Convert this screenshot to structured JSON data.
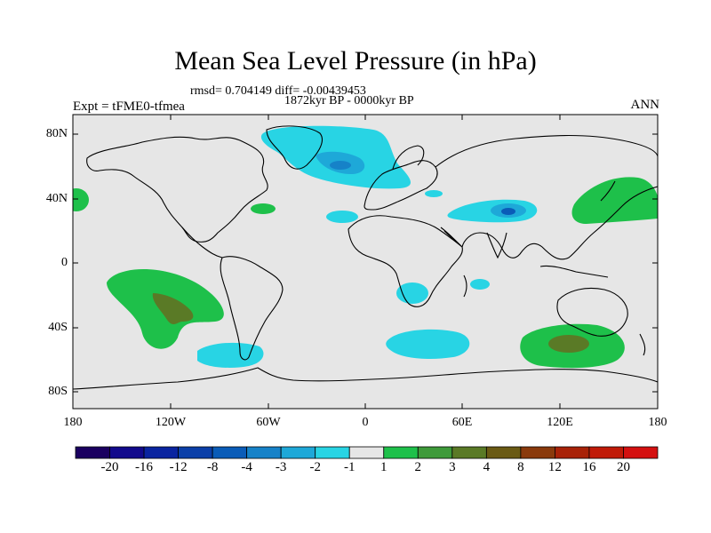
{
  "title": "Mean Sea Level Pressure (in hPa)",
  "stats": "rmsd= 0.704149 diff= -0.00439453",
  "period": "1872kyr BP - 0000kyr BP",
  "experiment": "Expt = tFME0-tfmea",
  "season": "ANN",
  "lat_labels": [
    "80N",
    "40N",
    "0",
    "40S",
    "80S"
  ],
  "lon_labels": [
    "180",
    "120W",
    "60W",
    "0",
    "60E",
    "120E",
    "180"
  ],
  "colorbar": {
    "labels": [
      "-20",
      "-16",
      "-12",
      "-8",
      "-4",
      "-3",
      "-2",
      "-1",
      "1",
      "2",
      "3",
      "4",
      "8",
      "12",
      "16",
      "20"
    ],
    "colors": [
      "#1a0060",
      "#120a8c",
      "#0a24a0",
      "#0b3fa8",
      "#0a5cb8",
      "#1682c8",
      "#1ea8d8",
      "#28d4e4",
      "#e6e6e6",
      "#1ec04a",
      "#3e9a3a",
      "#5a7a26",
      "#6a5a14",
      "#8a3a0c",
      "#a82208",
      "#c01a08",
      "#d41010"
    ]
  },
  "colors": {
    "background": "#e6e6e6",
    "neg1": "#28d4e4",
    "neg2": "#1ea8d8",
    "neg3": "#1682c8",
    "neg4": "#0a5cb8",
    "pos1": "#1ec04a",
    "pos2": "#3e9a3a",
    "pos3": "#5a7a26"
  }
}
